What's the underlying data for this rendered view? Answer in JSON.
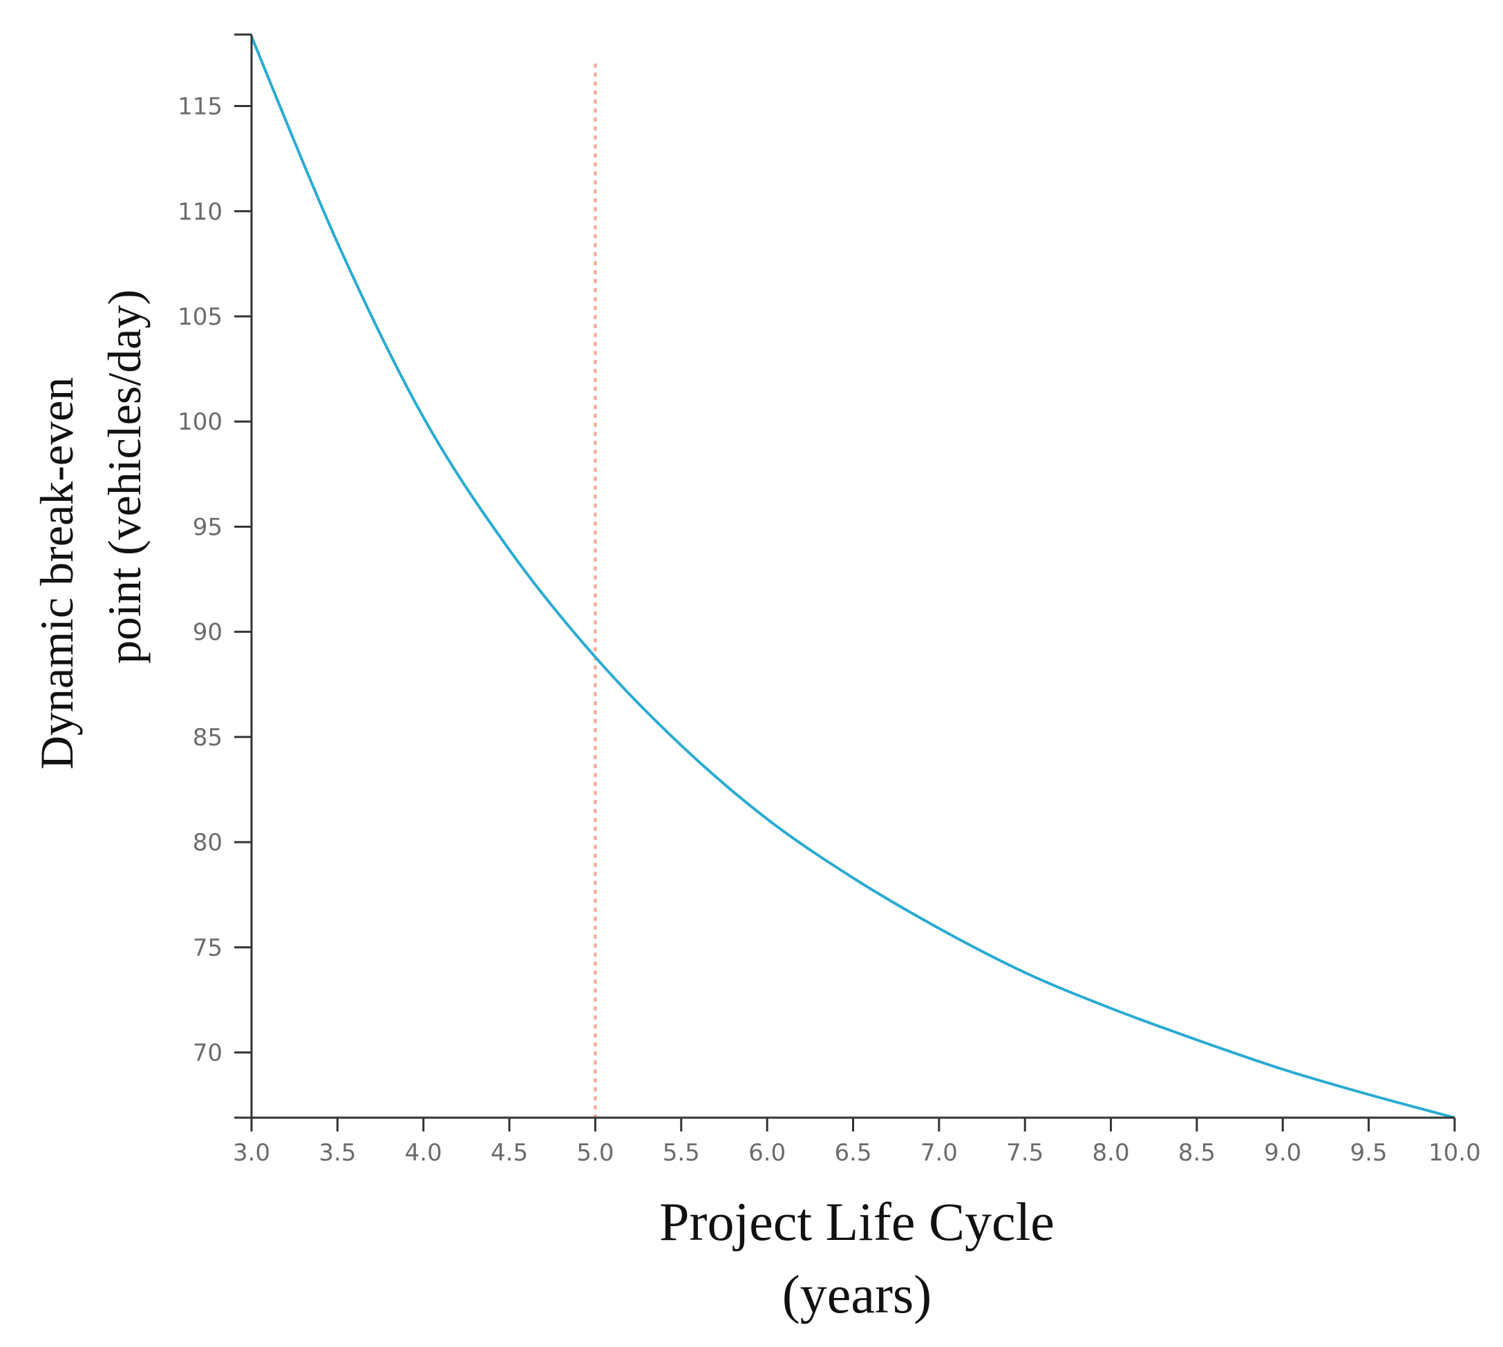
{
  "chart_data": {
    "type": "line",
    "title": "",
    "xlabel_lines": [
      "Project Life Cycle",
      "(years)"
    ],
    "ylabel_lines": [
      "Dynamic break-even",
      "point (vehicles/day)"
    ],
    "xlim": [
      3.0,
      10.0
    ],
    "ylim": [
      66.9,
      118.4
    ],
    "xticks": [
      "3.0",
      "3.5",
      "4.0",
      "4.5",
      "5.0",
      "5.5",
      "6.0",
      "6.5",
      "7.0",
      "7.5",
      "8.0",
      "8.5",
      "9.0",
      "9.5",
      "10.0"
    ],
    "yticks": [
      "70",
      "75",
      "80",
      "85",
      "90",
      "95",
      "100",
      "105",
      "110",
      "115"
    ],
    "series": [
      {
        "name": "Dynamic break-even point",
        "color": "#29abd2",
        "x": [
          3.0,
          3.5,
          4.0,
          4.5,
          5.0,
          5.5,
          6.0,
          6.5,
          7.0,
          7.5,
          8.0,
          8.5,
          9.0,
          9.5,
          10.0
        ],
        "y": [
          118.3,
          108.5,
          100.2,
          93.9,
          88.8,
          84.6,
          81.1,
          78.3,
          75.9,
          73.8,
          72.1,
          70.6,
          69.2,
          68.0,
          66.9
        ]
      }
    ],
    "reference_line": {
      "x": 5.0,
      "color": "#f4a98f",
      "style": "dotted"
    }
  }
}
